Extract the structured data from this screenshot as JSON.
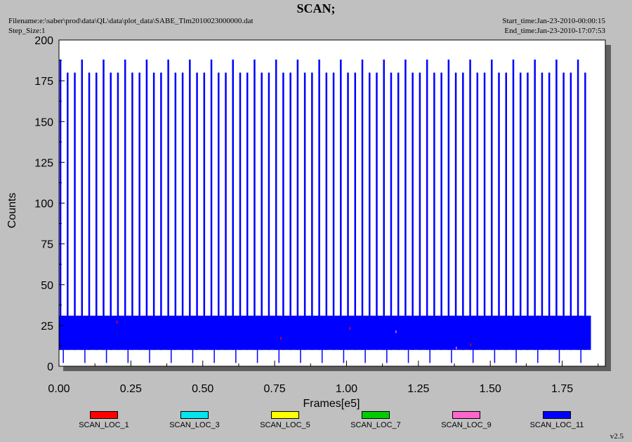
{
  "header": {
    "title": "SCAN;",
    "filename": "Filename:e:\\saber\\prod\\data\\QL\\data\\plot_data\\SABE_Tlm2010023000000.dat",
    "step_size": "Step_Size:1",
    "start_time": "Start_time:Jan-23-2010-00:00:15",
    "end_time": "End_time:Jan-23-2010-17:07:53"
  },
  "version": "v2.5",
  "chart_data": {
    "type": "line",
    "title": "SCAN;",
    "xlabel": "Frames[e5]",
    "ylabel": "Counts",
    "xlim": [
      0,
      1.9
    ],
    "ylim": [
      0,
      200
    ],
    "xticks": [
      "0.00",
      "0.25",
      "0.50",
      "0.75",
      "1.00",
      "1.25",
      "1.50",
      "1.75"
    ],
    "yticks": [
      "0",
      "25",
      "50",
      "75",
      "100",
      "125",
      "150",
      "175",
      "200"
    ],
    "grid": false,
    "legend_position": "bottom",
    "series": [
      {
        "name": "SCAN_LOC_1",
        "color": "#ff0000",
        "pattern": "occasional red spikes, values ~10-30",
        "x_range": [
          0.0,
          1.85
        ],
        "y_range": [
          10,
          30
        ]
      },
      {
        "name": "SCAN_LOC_3",
        "color": "#00e5ee",
        "pattern": "not visible",
        "x_range": [
          0.0,
          1.85
        ],
        "y_range": [
          10,
          30
        ]
      },
      {
        "name": "SCAN_LOC_5",
        "color": "#ffff00",
        "pattern": "not visible",
        "x_range": [
          0.0,
          1.85
        ],
        "y_range": [
          10,
          30
        ]
      },
      {
        "name": "SCAN_LOC_7",
        "color": "#00cc00",
        "pattern": "not visible",
        "x_range": [
          0.0,
          1.85
        ],
        "y_range": [
          10,
          30
        ]
      },
      {
        "name": "SCAN_LOC_9",
        "color": "#ff66cc",
        "pattern": "occasional pink spikes",
        "x_range": [
          0.0,
          1.85
        ],
        "y_range": [
          10,
          30
        ]
      },
      {
        "name": "SCAN_LOC_11",
        "color": "#0000ff",
        "pattern": "dense band 10-31 with periodic spikes to 180 (occasionally 188)",
        "x_range": [
          0.0,
          1.85
        ],
        "y_range": [
          2,
          188
        ]
      }
    ],
    "spike_values": {
      "normal": 180,
      "tall": 188,
      "band_low": 10,
      "band_high": 31,
      "dip": 2
    },
    "spike_period_frames_e5": 0.025,
    "tall_spike_every": 3
  }
}
